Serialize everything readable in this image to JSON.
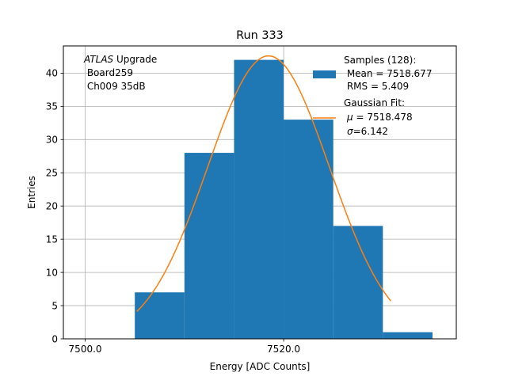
{
  "chart_data": {
    "type": "bar",
    "title": "Run 333",
    "xlabel": "Energy [ADC Counts]",
    "ylabel": "Entries",
    "xlim": [
      7497.8,
      7537.4
    ],
    "ylim": [
      0,
      44.1
    ],
    "grid": true,
    "x_ticks": [
      {
        "value": 7500,
        "label": "7500.0"
      },
      {
        "value": 7520,
        "label": "7520.0"
      }
    ],
    "y_ticks": [
      {
        "value": 0,
        "label": "0"
      },
      {
        "value": 5,
        "label": "5"
      },
      {
        "value": 10,
        "label": "10"
      },
      {
        "value": 15,
        "label": "15"
      },
      {
        "value": 20,
        "label": "20"
      },
      {
        "value": 25,
        "label": "25"
      },
      {
        "value": 30,
        "label": "30"
      },
      {
        "value": 35,
        "label": "35"
      },
      {
        "value": 40,
        "label": "40"
      }
    ],
    "histogram": {
      "name": "Samples",
      "color": "#1f77b4",
      "bin_edges": [
        7505,
        7510,
        7515,
        7520,
        7525,
        7530,
        7535
      ],
      "counts": [
        7,
        28,
        42,
        33,
        17,
        1
      ]
    },
    "fit": {
      "name": "Gaussian Fit",
      "color": "#ff7f0e",
      "mu": 7518.478,
      "sigma": 6.142,
      "amplitude": 42.6,
      "x_range": [
        7505.2,
        7530.8
      ]
    },
    "annotation": {
      "italic": "ATLAS",
      "rest": " Upgrade",
      "line2": " Board259",
      "line3": " Ch009 35dB"
    },
    "legend": {
      "position": "top-right",
      "samples_title": "Samples (128):",
      "samples_mean": " Mean = 7518.677",
      "samples_rms": " RMS = 5.409",
      "fit_title": "Gaussian Fit:",
      "fit_mu_symbol": "μ",
      "fit_mu_rest": " = 7518.478",
      "fit_sigma_symbol": "σ",
      "fit_sigma_rest": "=6.142"
    }
  }
}
